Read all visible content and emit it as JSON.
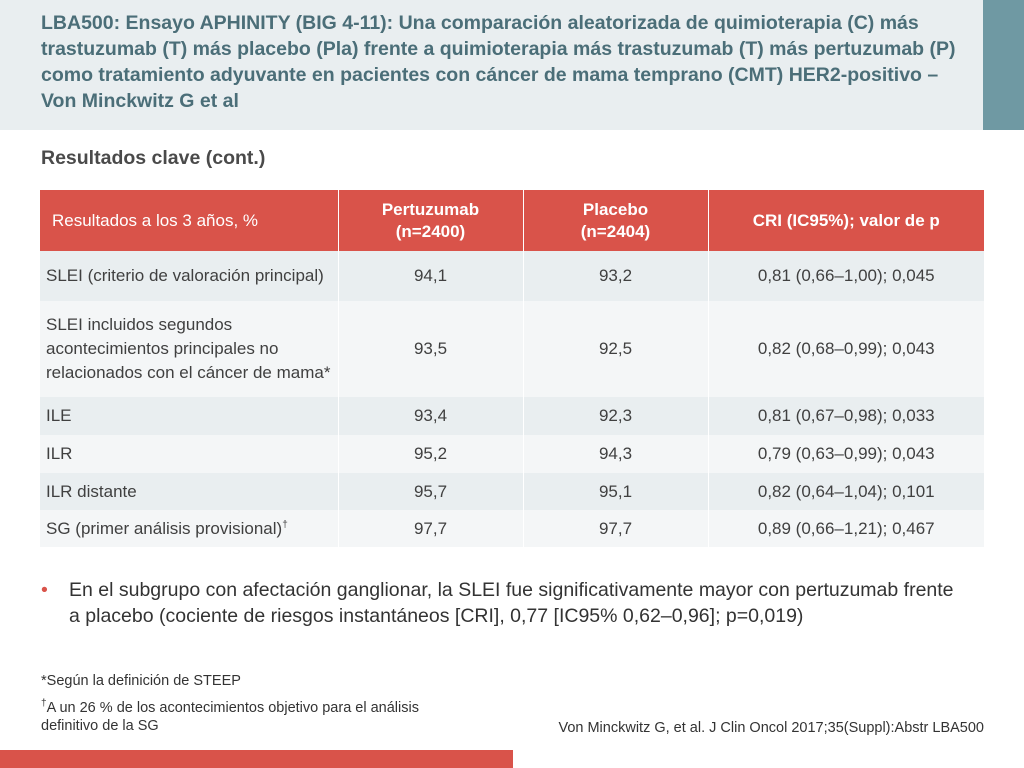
{
  "title": "LBA500: Ensayo APHINITY (BIG 4-11): Una comparación aleatorizada de quimioterapia (C) más trastuzumab (T) más placebo (Pla) frente a quimioterapia más trastuzumab (T) más pertuzumab (P) como tratamiento adyuvante en pacientes con cáncer de mama temprano (CMT) HER2-positivo – Von Minckwitz G et al",
  "subtitle": "Resultados clave (cont.)",
  "table": {
    "headers": [
      {
        "line1": "Resultados a los 3 años, %",
        "line2": ""
      },
      {
        "line1": "Pertuzumab",
        "line2": "(n=2400)"
      },
      {
        "line1": "Placebo",
        "line2": "(n=2404)"
      },
      {
        "line1": "CRI (IC95%); valor de p",
        "line2": ""
      }
    ],
    "rows": [
      {
        "label": "SLEI (criterio de valoración principal)",
        "sup": "",
        "pertuzumab": "94,1",
        "placebo": "93,2",
        "hr": "0,81 (0,66–1,00); 0,045"
      },
      {
        "label": "SLEI incluidos segundos acontecimientos principales no relacionados con el cáncer de mama*",
        "sup": "",
        "pertuzumab": "93,5",
        "placebo": "92,5",
        "hr": "0,82 (0,68–0,99); 0,043"
      },
      {
        "label": "ILE",
        "sup": "",
        "pertuzumab": "93,4",
        "placebo": "92,3",
        "hr": "0,81 (0,67–0,98); 0,033"
      },
      {
        "label": "ILR",
        "sup": "",
        "pertuzumab": "95,2",
        "placebo": "94,3",
        "hr": "0,79 (0,63–0,99); 0,043"
      },
      {
        "label": "ILR distante",
        "sup": "",
        "pertuzumab": "95,7",
        "placebo": "95,1",
        "hr": "0,82 (0,64–1,04); 0,101"
      },
      {
        "label": "SG (primer análisis provisional)",
        "sup": "†",
        "pertuzumab": "97,7",
        "placebo": "97,7",
        "hr": "0,89 (0,66–1,21); 0,467"
      }
    ]
  },
  "bullet": {
    "marker": "•",
    "text": "En el subgrupo con afectación ganglionar, la SLEI fue significativamente mayor con pertuzumab frente a placebo (cociente de riesgos instantáneos [CRI], 0,77 [IC95% 0,62–0,96]; p=0,019)"
  },
  "footnotes": {
    "note1": "*Según la definición de STEEP",
    "note2_mark": "†",
    "note2": "A un 26 % de los acontecimientos objetivo para el análisis definitivo de la SG"
  },
  "citation": "Von Minckwitz G, et al. J Clin Oncol 2017;35(Suppl):Abstr LBA500",
  "colors": {
    "title_text": "#4b6e78",
    "title_band": "#e9eef0",
    "accent_block": "#6f99a3",
    "header_red": "#d9534a",
    "row_odd": "#e9eef0",
    "row_even": "#f4f6f7"
  }
}
